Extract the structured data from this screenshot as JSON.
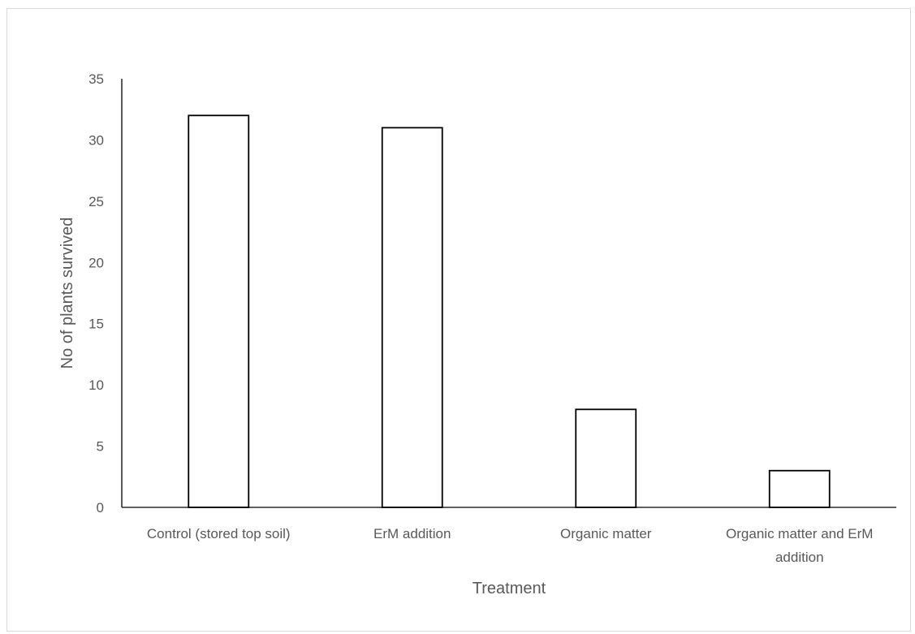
{
  "chart_data": {
    "type": "bar",
    "title": "",
    "xlabel": "Treatment",
    "ylabel": "No of plants survived",
    "categories": [
      [
        "Control (stored top soil)"
      ],
      [
        "ErM addition"
      ],
      [
        "Organic matter"
      ],
      [
        "Organic matter and ErM",
        "addition"
      ]
    ],
    "values": [
      32,
      31,
      8,
      3
    ],
    "ylim": [
      0,
      35
    ],
    "yticks": [
      0,
      5,
      10,
      15,
      20,
      25,
      30,
      35
    ],
    "grid": false,
    "legend": "none",
    "colors": {
      "bar_fill": "#ffffff",
      "bar_stroke": "#000000",
      "axis": "#000000",
      "text": "#595959"
    }
  }
}
